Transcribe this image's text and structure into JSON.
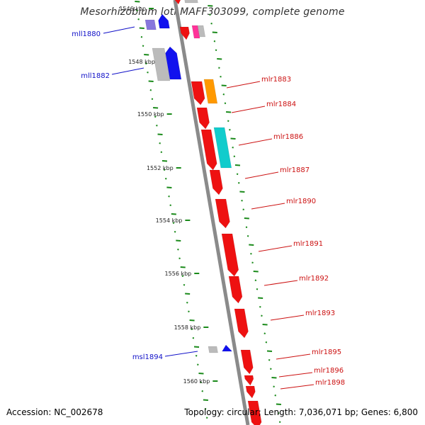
{
  "title": "Mesorhizobium loti MAFF303099, complete genome",
  "accession": "Accession: NC_002678",
  "summary": "Topology: circular; Length: 7,036,071 bp; Genes: 6,800",
  "colors": {
    "backbone": "#8a8a8a",
    "tick": "#1a8a1a",
    "minus_label": "#1010c8",
    "plus_label": "#cc1111",
    "gene_red": "#ee1111",
    "gene_orange": "#ff9900",
    "gene_cyan": "#11cccc",
    "gene_blue": "#1111ee",
    "gene_grey": "#bbbbbb",
    "gene_pink": "#ff3399",
    "gene_lavender": "#8877dd"
  },
  "scale_labels": [
    "1546 kbp",
    "1548 kbp",
    "1550 kbp",
    "1552 kbp",
    "1554 kbp",
    "1556 kbp",
    "1558 kbp",
    "1560 kbp"
  ],
  "minus_strand_genes": [
    "mll1880",
    "mll1882",
    "msl1894"
  ],
  "plus_strand_genes": [
    "mlr1883",
    "mlr1884",
    "mlr1886",
    "mlr1887",
    "mlr1890",
    "mlr1891",
    "mlr1892",
    "mlr1893",
    "mlr1895",
    "mlr1896",
    "mlr1898"
  ]
}
